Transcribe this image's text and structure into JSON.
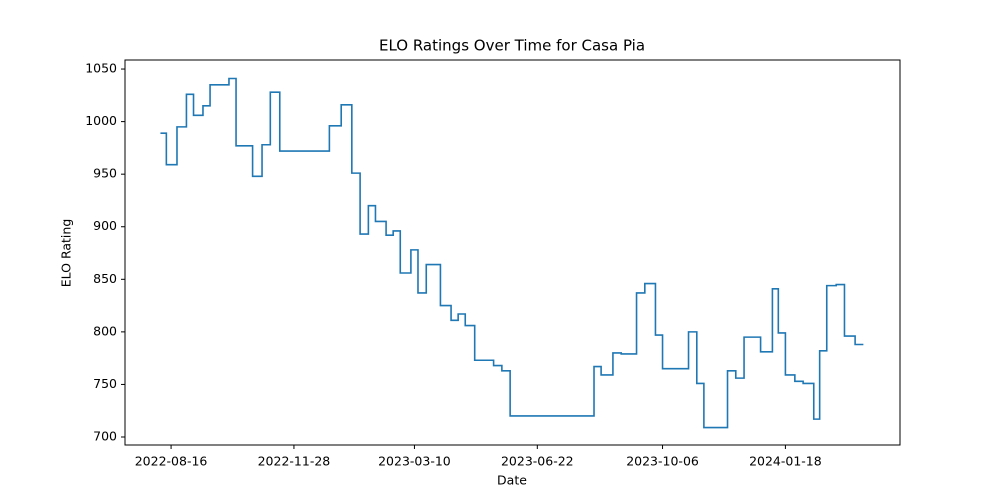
{
  "chart_data": {
    "type": "line",
    "drawstyle": "steps-post",
    "title": "ELO Ratings Over Time for Casa Pia",
    "x_label": "Date",
    "y_label": "ELO Rating",
    "x": [
      "2022-08-07",
      "2022-08-12",
      "2022-08-21",
      "2022-08-29",
      "2022-09-04",
      "2022-09-12",
      "2022-09-18",
      "2022-10-04",
      "2022-10-10",
      "2022-10-24",
      "2022-11-01",
      "2022-11-08",
      "2022-11-16",
      "2022-12-28",
      "2023-01-07",
      "2023-01-16",
      "2023-01-23",
      "2023-01-30",
      "2023-02-05",
      "2023-02-14",
      "2023-02-20",
      "2023-02-26",
      "2023-03-07",
      "2023-03-13",
      "2023-03-20",
      "2023-04-01",
      "2023-04-10",
      "2023-04-16",
      "2023-04-22",
      "2023-04-30",
      "2023-05-16",
      "2023-05-23",
      "2023-05-30",
      "2023-08-09",
      "2023-08-15",
      "2023-08-25",
      "2023-09-01",
      "2023-09-14",
      "2023-09-21",
      "2023-09-30",
      "2023-10-06",
      "2023-10-28",
      "2023-11-04",
      "2023-11-10",
      "2023-11-30",
      "2023-12-07",
      "2023-12-14",
      "2023-12-28",
      "2024-01-07",
      "2024-01-12",
      "2024-01-18",
      "2024-01-26",
      "2024-02-02",
      "2024-02-11",
      "2024-02-16",
      "2024-02-22",
      "2024-03-01",
      "2024-03-08",
      "2024-03-17",
      "2024-03-24"
    ],
    "series": [
      {
        "name": "Casa Pia",
        "color": "#1f77b4",
        "values": [
          989,
          959,
          995,
          1026,
          1006,
          1015,
          1035,
          1041,
          977,
          948,
          978,
          1028,
          972,
          996,
          1016,
          951,
          893,
          920,
          905,
          892,
          896,
          856,
          878,
          837,
          864,
          825,
          811,
          817,
          806,
          773,
          768,
          763,
          720,
          767,
          759,
          780,
          779,
          837,
          846,
          797,
          765,
          800,
          751,
          709,
          763,
          756,
          795,
          781,
          841,
          799,
          759,
          753,
          751,
          717,
          782,
          844,
          845,
          796,
          788,
          788
        ]
      }
    ],
    "xlim": [
      "2022-07-08",
      "2024-04-24"
    ],
    "xticks": [
      "2022-08-16",
      "2022-11-28",
      "2023-03-10",
      "2023-06-22",
      "2023-10-06",
      "2024-01-18"
    ],
    "ylim": [
      692.4,
      1058.6
    ],
    "yticks": [
      700,
      750,
      800,
      850,
      900,
      950,
      1000,
      1050
    ]
  }
}
